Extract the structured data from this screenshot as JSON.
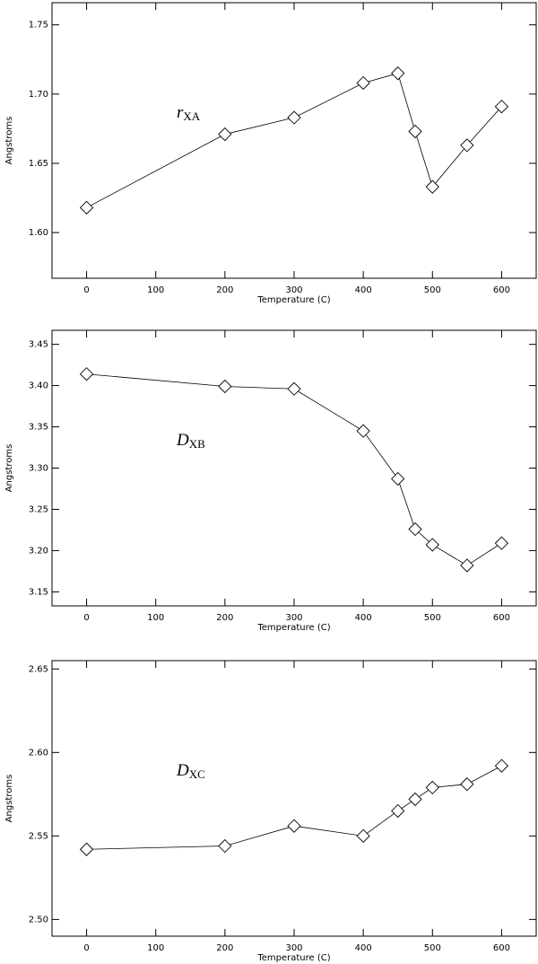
{
  "chart_data": [
    {
      "type": "line",
      "annotation": "r",
      "annotation_sub": "XA",
      "xlabel": "Temperature (C)",
      "ylabel": "Angstroms",
      "x": [
        0,
        200,
        300,
        400,
        450,
        475,
        500,
        550,
        600
      ],
      "values": [
        1.618,
        1.671,
        1.683,
        1.708,
        1.715,
        1.673,
        1.633,
        1.663,
        1.691
      ],
      "color": "#000000",
      "marker": "diamond",
      "xlim": [
        -50,
        650
      ],
      "xticks": [
        0,
        100,
        200,
        300,
        400,
        500,
        600
      ],
      "ylim": [
        1.567,
        1.766
      ],
      "yticks": [
        {
          "value": 1.6,
          "label": "1.60"
        },
        1.65,
        {
          "value": 1.7,
          "label": "1.70"
        },
        1.75
      ]
    },
    {
      "type": "line",
      "annotation": "D",
      "annotation_sub": "XB",
      "xlabel": "Temperature (C)",
      "ylabel": "Angstroms",
      "x": [
        0,
        200,
        300,
        400,
        450,
        475,
        500,
        550,
        600
      ],
      "values": [
        3.414,
        3.399,
        3.396,
        3.345,
        3.287,
        3.226,
        3.207,
        3.182,
        3.209
      ],
      "color": "#000000",
      "marker": "diamond",
      "xlim": [
        -50,
        650
      ],
      "xticks": [
        0,
        100,
        200,
        300,
        400,
        500,
        600
      ],
      "ylim": [
        3.133,
        3.467
      ],
      "yticks": [
        3.15,
        {
          "value": 3.2,
          "label": "3.20"
        },
        3.25,
        {
          "value": 3.3,
          "label": "3.30"
        },
        3.35,
        {
          "value": 3.4,
          "label": "3.40"
        },
        3.45
      ]
    },
    {
      "type": "line",
      "annotation": "D",
      "annotation_sub": "XC",
      "xlabel": "Temperature (C)",
      "ylabel": "Angstroms",
      "x": [
        0,
        200,
        300,
        400,
        450,
        475,
        500,
        550,
        600
      ],
      "values": [
        2.542,
        2.544,
        2.556,
        2.55,
        2.565,
        2.572,
        2.579,
        2.581,
        2.592
      ],
      "color": "#000000",
      "marker": "diamond",
      "xlim": [
        -50,
        650
      ],
      "xticks": [
        0,
        100,
        200,
        300,
        400,
        500,
        600
      ],
      "ylim": [
        2.49,
        2.655
      ],
      "yticks": [
        {
          "value": 2.5,
          "label": "2.50"
        },
        2.55,
        {
          "value": 2.6,
          "label": "2.60"
        },
        2.65
      ]
    }
  ]
}
